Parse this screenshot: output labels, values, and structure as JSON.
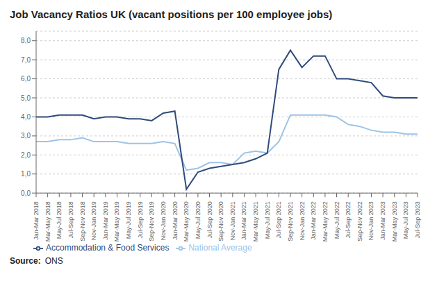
{
  "chart_data": {
    "type": "line",
    "title": "Job Vacancy Ratios UK (vacant positions per 100 employee jobs)",
    "categories": [
      "Jan-Mar 2018",
      "Mar-May 2018",
      "May-Jul 2018",
      "Jul-Sep 2018",
      "Sep-Nov 2018",
      "Nov-Jan 2019",
      "Jan-Mar 2019",
      "Mar-May 2019",
      "May-Jul 2019",
      "Jul-Sep 2019",
      "Sep-Nov 2019",
      "Nov-Jan 2020",
      "Jan-Mar 2020",
      "Mar-May 2020",
      "May-Jul 2020",
      "Jul-Sep 2020",
      "Sep-Nov 2020",
      "Nov-Jan 2021",
      "Jan-Mar 2021",
      "Mar-May 2021",
      "May-Jul 2021",
      "Jul-Sep 2021",
      "Sep-Nov 2021",
      "Nov-Jan 2022",
      "Jan-Mar 2022",
      "Mar-May 2022",
      "May-Jul 2022",
      "Jul-Sep 2022",
      "Sep-Nov 2022",
      "Nov-Jan 2023",
      "Jan-Mar 2023",
      "Mar-May 2023",
      "May-Jul 2023",
      "Jul-Sep 2023"
    ],
    "series": [
      {
        "name": "National Average",
        "color": "#9DC3E6",
        "values": [
          2.7,
          2.7,
          2.8,
          2.8,
          2.9,
          2.7,
          2.7,
          2.7,
          2.6,
          2.6,
          2.6,
          2.7,
          2.6,
          1.2,
          1.3,
          1.6,
          1.6,
          1.5,
          2.1,
          2.2,
          2.1,
          2.7,
          4.1,
          4.1,
          4.1,
          4.1,
          4.0,
          3.6,
          3.5,
          3.3,
          3.2,
          3.2,
          3.1,
          3.1
        ]
      },
      {
        "name": "Accommodation & Food Services",
        "color": "#2E4B7B",
        "values": [
          4.0,
          4.0,
          4.1,
          4.1,
          4.1,
          3.9,
          4.0,
          4.0,
          3.9,
          3.9,
          3.8,
          4.2,
          4.3,
          0.2,
          1.1,
          1.3,
          1.4,
          1.5,
          1.6,
          1.8,
          2.1,
          6.5,
          7.5,
          6.6,
          7.2,
          7.2,
          6.0,
          6.0,
          5.9,
          5.8,
          5.1,
          5.0,
          5.0,
          5.0
        ]
      }
    ],
    "ylim": [
      0.0,
      8.5
    ],
    "yticks": [
      {
        "value": 0,
        "label": "0,0"
      },
      {
        "value": 1,
        "label": "1,0"
      },
      {
        "value": 2,
        "label": "2,0"
      },
      {
        "value": 3,
        "label": "3,0"
      },
      {
        "value": 4,
        "label": "4,0"
      },
      {
        "value": 5,
        "label": "5,0"
      },
      {
        "value": 6,
        "label": "6,0"
      },
      {
        "value": 7,
        "label": "7,0"
      },
      {
        "value": 8,
        "label": "8,0"
      }
    ],
    "grid": true,
    "legend": "bottom",
    "annotations": [
      "Source:",
      "ONS"
    ]
  }
}
